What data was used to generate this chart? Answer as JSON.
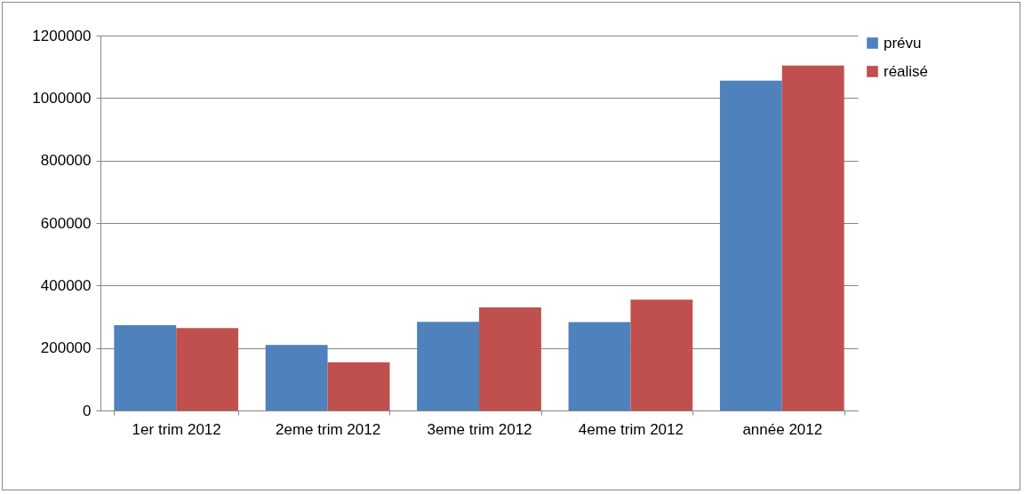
{
  "chart_data": {
    "type": "bar",
    "categories": [
      "1er trim 2012",
      "2eme trim 2012",
      "3eme trim 2012",
      "4eme trim 2012",
      "année 2012"
    ],
    "series": [
      {
        "name": "prévu",
        "color": "#4f81bd",
        "values": [
          273000,
          210000,
          284000,
          283000,
          1056000
        ]
      },
      {
        "name": "réalisé",
        "color": "#c0504d",
        "values": [
          264000,
          154000,
          330000,
          355000,
          1104000
        ]
      }
    ],
    "ylim": [
      0,
      1200000
    ],
    "yticks": [
      0,
      200000,
      400000,
      600000,
      800000,
      1000000,
      1200000
    ],
    "grid": "y",
    "legend": "right"
  }
}
